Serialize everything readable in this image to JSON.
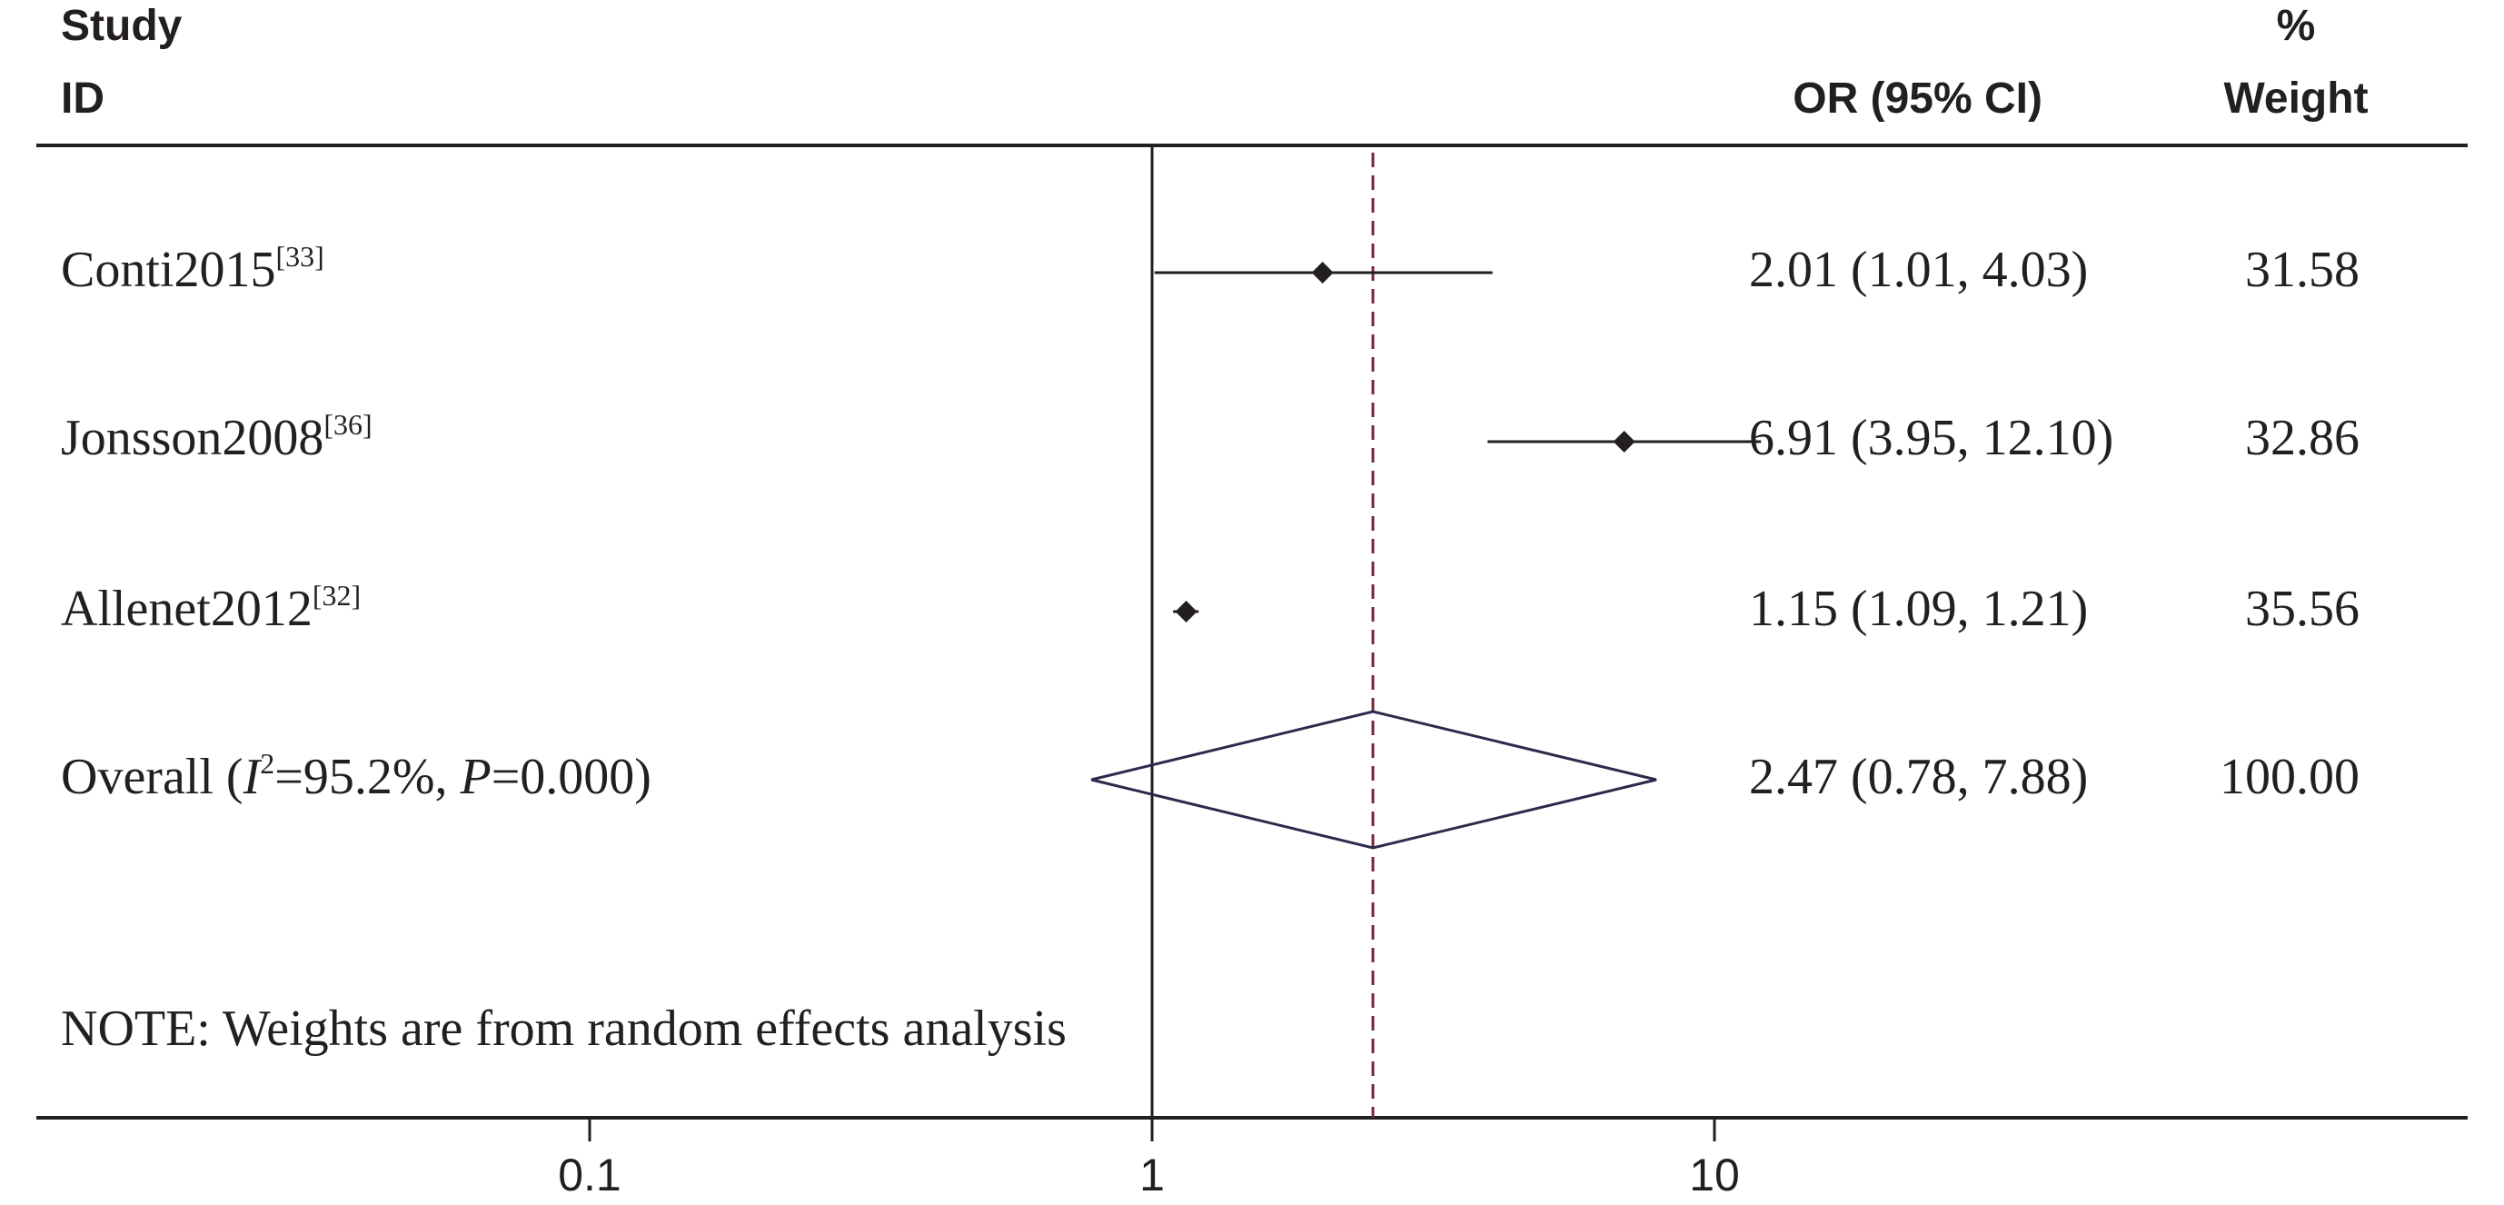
{
  "chart_data": {
    "type": "forest",
    "headers": {
      "study_line1": "Study",
      "study_line2": "ID",
      "or_header": "OR (95% CI)",
      "weight_line1": "%",
      "weight_line2": "Weight"
    },
    "x_scale": "log",
    "x_ticks": [
      0.1,
      1,
      10
    ],
    "x_tick_labels": [
      "0.1",
      "1",
      "10"
    ],
    "null_line": 1,
    "studies": [
      {
        "name": "Conti2015",
        "ref": "[33]",
        "or": 2.01,
        "lo": 1.01,
        "hi": 4.03,
        "or_text": "2.01 (1.01, 4.03)",
        "weight": "31.58"
      },
      {
        "name": "Jonsson2008",
        "ref": "[36]",
        "or": 6.91,
        "lo": 3.95,
        "hi": 12.1,
        "or_text": "6.91 (3.95, 12.10)",
        "weight": "32.86"
      },
      {
        "name": "Allenet2012",
        "ref": "[32]",
        "or": 1.15,
        "lo": 1.09,
        "hi": 1.21,
        "or_text": "1.15 (1.09, 1.21)",
        "weight": "35.56"
      }
    ],
    "overall": {
      "label_prefix": "Overall  (",
      "i_letter": "I",
      "i_sup": "2",
      "i_value": "=95.2%, ",
      "p_letter": "P",
      "p_value": "=0.000)",
      "or": 2.47,
      "lo": 0.78,
      "hi": 7.88,
      "or_text": "2.47 (0.78, 7.88)",
      "weight": "100.00"
    },
    "note": "NOTE: Weights are from random effects analysis",
    "colors": {
      "text": "#231f20",
      "diamond": "#2b2a4a",
      "reference_line": "#7a2335",
      "axis": "#231f20"
    }
  }
}
